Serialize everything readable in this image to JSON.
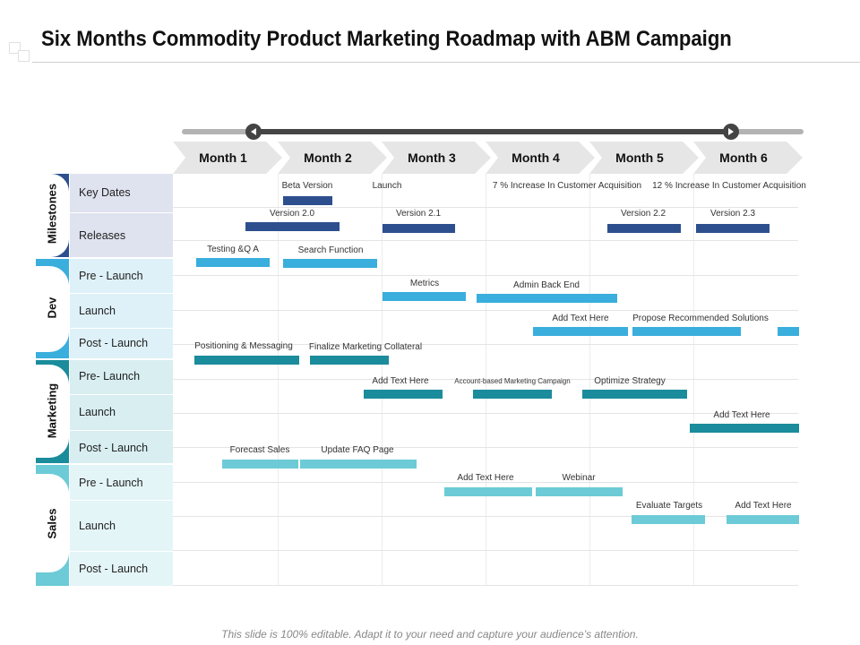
{
  "title": "Six Months Commodity Product Marketing Roadmap with ABM Campaign",
  "footer": "This slide is 100% editable. Adapt it to your need and capture your audience’s attention.",
  "months": [
    "Month 1",
    "Month 2",
    "Month 3",
    "Month 4",
    "Month 5",
    "Month 6"
  ],
  "colors": {
    "milestones": "#2d4f8e",
    "dev": "#3aaedc",
    "marketing": "#1a8c9c",
    "sales": "#6ccbd6",
    "milestones_bg": "#dfe3ef",
    "dev_bg": "#def1f8",
    "marketing_bg": "#d8eef1",
    "sales_bg": "#e4f5f8"
  },
  "groups": [
    {
      "name": "Milestones",
      "rows": [
        "Key Dates",
        "Releases"
      ]
    },
    {
      "name": "Dev",
      "rows": [
        "Pre - Launch",
        "Launch",
        "Post - Launch"
      ]
    },
    {
      "name": "Marketing",
      "rows": [
        "Pre- Launch",
        "Launch",
        "Post - Launch"
      ]
    },
    {
      "name": "Sales",
      "rows": [
        "Pre - Launch",
        "Launch",
        "Post - Launch"
      ]
    }
  ],
  "tasks": {
    "key_dates": [
      "Beta Version",
      "Launch",
      "7 % Increase In Customer Acquisition",
      "12 % Increase In Customer Acquisition"
    ],
    "releases": [
      "Version 2.0",
      "Version 2.1",
      "Version 2.2",
      "Version 2.3"
    ],
    "dev_pre": [
      "Testing &Q A",
      "Search Function"
    ],
    "dev_launch": [
      "Metrics",
      "Admin Back End"
    ],
    "dev_post": [
      "Add Text Here",
      "Propose Recommended Solutions"
    ],
    "mkt_pre": [
      "Positioning & Messaging",
      "Finalize Marketing Collateral"
    ],
    "mkt_launch": [
      "Add Text Here",
      "Account-based  Marketing Campaign",
      "Optimize Strategy"
    ],
    "mkt_post": [
      "Add Text Here"
    ],
    "sales_pre": [
      "Forecast Sales",
      "Update FAQ Page"
    ],
    "sales_launch": [
      "Add Text Here",
      "Webinar"
    ],
    "sales_post": [
      "Evaluate Targets",
      "Add Text Here"
    ]
  }
}
